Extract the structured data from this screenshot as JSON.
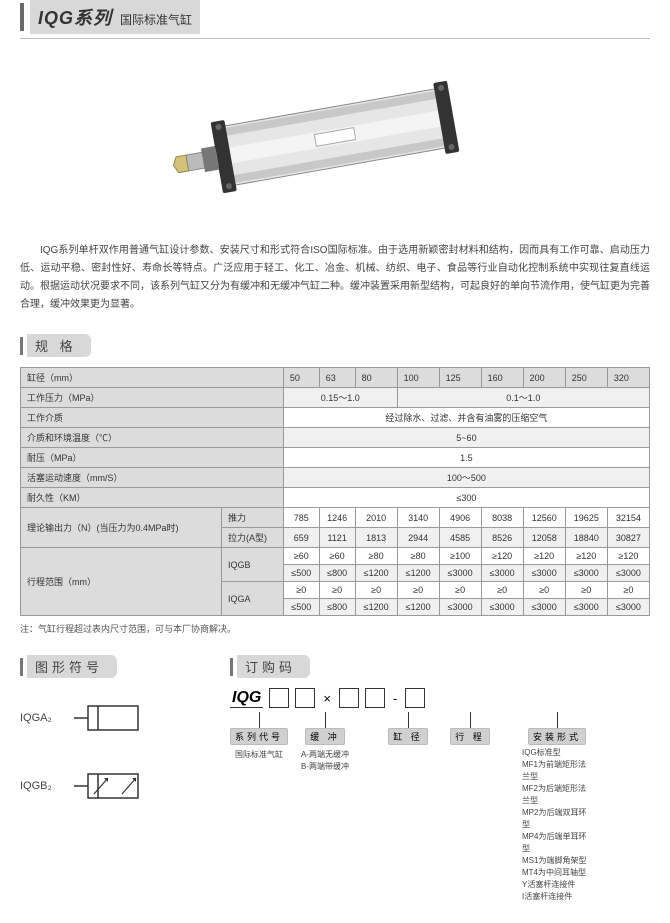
{
  "title": {
    "main": "IQG系列",
    "sub": "国际标准气缸"
  },
  "description": "IQG系列单杆双作用普通气缸设计参数、安装尺寸和形式符合ISO国际标准。由于选用新颖密封材料和结构，因而具有工作可靠、启动压力低、运动平稳、密封性好、寿命长等特点。广泛应用于轻工、化工、冶金、机械、纺织、电子、食品等行业自动化控制系统中实现往复直线运动。根据运动状况要求不同，该系列气缸又分为有缓冲和无缓冲气缸二种。缓冲装置采用新型结构，可起良好的单向节流作用，使气缸更为完善合理，缓冲效果更为显著。",
  "sections": {
    "spec": "规  格",
    "symbol": "图形符号",
    "order": "订购码"
  },
  "spec": {
    "headers": [
      "缸径（mm）",
      "50",
      "63",
      "80",
      "100",
      "125",
      "160",
      "200",
      "250",
      "320"
    ],
    "rows": [
      {
        "label": "工作压力（MPa）",
        "cells": [
          {
            "span": 3,
            "v": "0.15～1.0"
          },
          {
            "span": 6,
            "v": "0.1～1.0"
          }
        ]
      },
      {
        "label": "工作介质",
        "cells": [
          {
            "span": 9,
            "v": "经过除水、过滤、并含有油雾的压缩空气"
          }
        ]
      },
      {
        "label": "介质和环境温度（℃）",
        "cells": [
          {
            "span": 9,
            "v": "5~60"
          }
        ]
      },
      {
        "label": "耐压（MPa）",
        "cells": [
          {
            "span": 9,
            "v": "1.5"
          }
        ]
      },
      {
        "label": "活塞运动速度（mm/S）",
        "cells": [
          {
            "span": 9,
            "v": "100～500"
          }
        ]
      },
      {
        "label": "耐久性（KM）",
        "cells": [
          {
            "span": 9,
            "v": "≤300"
          }
        ]
      }
    ],
    "force": {
      "label": "理论输出力（N）(当压力为0.4MPa时)",
      "push_label": "推力",
      "push": [
        "785",
        "1246",
        "2010",
        "3140",
        "4906",
        "8038",
        "12560",
        "19625",
        "32154"
      ],
      "pull_label": "拉力(A型)",
      "pull": [
        "659",
        "1121",
        "1813",
        "2944",
        "4585",
        "8526",
        "12058",
        "18840",
        "30827"
      ]
    },
    "stroke": {
      "label": "行程范围（mm）",
      "iqgb_label": "IQGB",
      "iqgb_min": [
        "≥60",
        "≥60",
        "≥80",
        "≥80",
        "≥100",
        "≥120",
        "≥120",
        "≥120",
        "≥120"
      ],
      "iqgb_max": [
        "≤500",
        "≤800",
        "≤1200",
        "≤1200",
        "≤3000",
        "≤3000",
        "≤3000",
        "≤3000",
        "≤3000"
      ],
      "iqga_label": "IQGA",
      "iqga_min": [
        "≥0",
        "≥0",
        "≥0",
        "≥0",
        "≥0",
        "≥0",
        "≥0",
        "≥0",
        "≥0"
      ],
      "iqga_max": [
        "≤500",
        "≤800",
        "≤1200",
        "≤1200",
        "≤3000",
        "≤3000",
        "≤3000",
        "≤3000",
        "≤3000"
      ]
    }
  },
  "note": "注：气缸行程超过表内尺寸范围，可与本厂协商解决。",
  "symbols": {
    "a": "IQGA₂",
    "b": "IQGB₂"
  },
  "order": {
    "prefix": "IQG",
    "slots": [
      {
        "cap": "系列代号",
        "note": "国际标准气缸"
      },
      {
        "cap": "缓    冲",
        "note": "A-两端无缓冲\nB-两端带缓冲"
      },
      {
        "cap": "缸    径",
        "note": ""
      },
      {
        "cap": "行    程",
        "note": ""
      },
      {
        "cap": "安装形式",
        "note": ""
      }
    ],
    "install_list": [
      "IQG标准型",
      "MF1为前端矩形法兰型",
      "MF2为后端矩形法兰型",
      "MP2为后端双耳环型",
      "MP4为后端单耳环型",
      "MS1为端脚角架型",
      "MT4为中间耳轴型",
      "Y活塞杆连接件",
      "I活塞杆连接件"
    ]
  },
  "colors": {
    "accent": "#6a6a6a",
    "header_bg": "#dcdcdc",
    "box_bg": "#d8d8d8"
  }
}
